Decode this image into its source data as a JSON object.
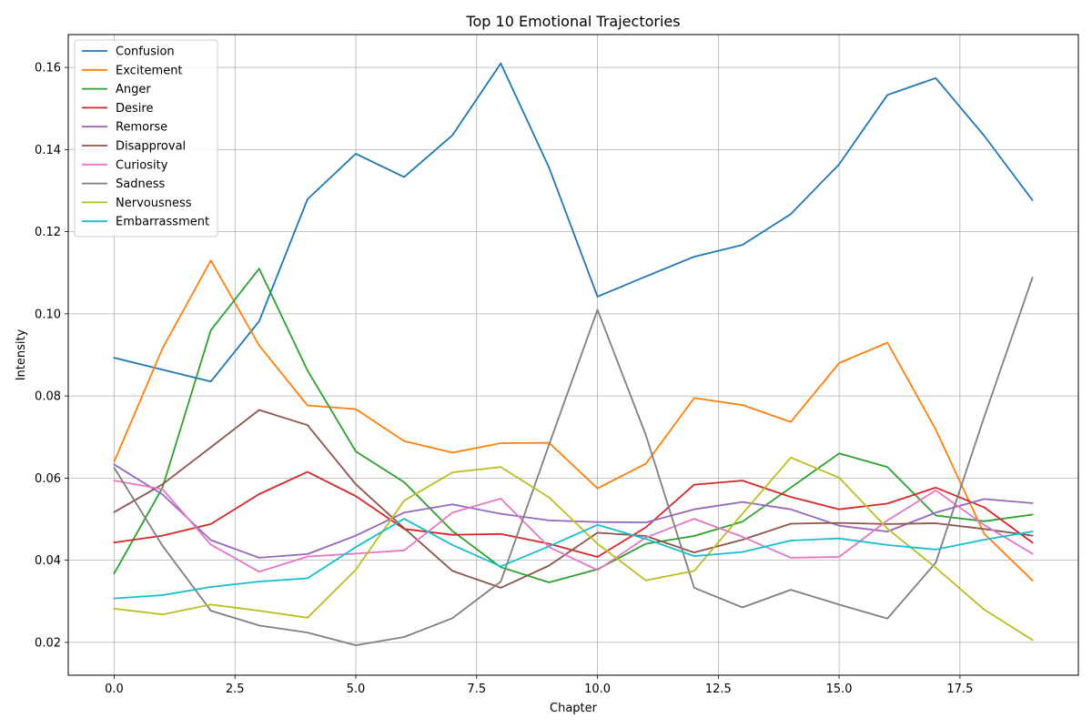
{
  "chart_data": {
    "type": "line",
    "title": "Top 10 Emotional Trajectories",
    "xlabel": "Chapter",
    "ylabel": "Intensity",
    "xlim": [
      -0.95,
      19.95
    ],
    "ylim": [
      0.012,
      0.168
    ],
    "x_ticks": [
      0.0,
      2.5,
      5.0,
      7.5,
      10.0,
      12.5,
      15.0,
      17.5
    ],
    "x_tick_labels": [
      "0.0",
      "2.5",
      "5.0",
      "7.5",
      "10.0",
      "12.5",
      "15.0",
      "17.5"
    ],
    "y_ticks": [
      0.02,
      0.04,
      0.06,
      0.08,
      0.1,
      0.12,
      0.14,
      0.16
    ],
    "y_tick_labels": [
      "0.02",
      "0.04",
      "0.06",
      "0.08",
      "0.10",
      "0.12",
      "0.14",
      "0.16"
    ],
    "grid": true,
    "legend_position": "top-left",
    "x": [
      0,
      1,
      2,
      3,
      4,
      5,
      6,
      7,
      8,
      9,
      10,
      11,
      12,
      13,
      14,
      15,
      16,
      17,
      18,
      19
    ],
    "series": [
      {
        "name": "Confusion",
        "color": "#1f77b4",
        "values": [
          0.0893,
          0.0864,
          0.0835,
          0.0982,
          0.1279,
          0.139,
          0.1333,
          0.1435,
          0.161,
          0.1356,
          0.1042,
          0.1091,
          0.1139,
          0.1168,
          0.1243,
          0.1364,
          0.1533,
          0.1574,
          0.1434,
          0.1277
        ]
      },
      {
        "name": "Excitement",
        "color": "#ff7f0e",
        "values": [
          0.064,
          0.0916,
          0.113,
          0.0923,
          0.0777,
          0.0768,
          0.069,
          0.0662,
          0.0685,
          0.0686,
          0.0575,
          0.0635,
          0.0795,
          0.0778,
          0.0737,
          0.088,
          0.093,
          0.0718,
          0.0465,
          0.0351
        ]
      },
      {
        "name": "Anger",
        "color": "#2ca02c",
        "values": [
          0.0368,
          0.0577,
          0.096,
          0.111,
          0.0862,
          0.0665,
          0.059,
          0.0471,
          0.0383,
          0.0346,
          0.0378,
          0.044,
          0.0459,
          0.0494,
          0.0577,
          0.066,
          0.0627,
          0.0509,
          0.0495,
          0.0511
        ]
      },
      {
        "name": "Desire",
        "color": "#d62728",
        "values": [
          0.0443,
          0.046,
          0.0488,
          0.0561,
          0.0615,
          0.0556,
          0.0476,
          0.0462,
          0.0464,
          0.044,
          0.0408,
          0.048,
          0.0584,
          0.0594,
          0.0554,
          0.0524,
          0.0538,
          0.0577,
          0.0529,
          0.0443
        ]
      },
      {
        "name": "Remorse",
        "color": "#9467bd",
        "values": [
          0.0633,
          0.056,
          0.0449,
          0.0406,
          0.0415,
          0.046,
          0.0516,
          0.0536,
          0.0513,
          0.0497,
          0.0493,
          0.0492,
          0.0524,
          0.0542,
          0.0524,
          0.0484,
          0.047,
          0.0516,
          0.0549,
          0.0539
        ]
      },
      {
        "name": "Disapproval",
        "color": "#8c564b",
        "values": [
          0.0517,
          0.0585,
          0.0675,
          0.0766,
          0.0729,
          0.0585,
          0.0478,
          0.0374,
          0.0333,
          0.0387,
          0.0467,
          0.0459,
          0.0419,
          0.045,
          0.0489,
          0.0491,
          0.0488,
          0.049,
          0.0476,
          0.046
        ]
      },
      {
        "name": "Curiosity",
        "color": "#e377c2",
        "values": [
          0.0594,
          0.0573,
          0.0438,
          0.0372,
          0.0409,
          0.0416,
          0.0424,
          0.0516,
          0.055,
          0.0432,
          0.0376,
          0.0455,
          0.0501,
          0.0457,
          0.0406,
          0.0408,
          0.0497,
          0.057,
          0.0486,
          0.0416
        ]
      },
      {
        "name": "Sadness",
        "color": "#7f7f7f",
        "values": [
          0.0625,
          0.0435,
          0.0277,
          0.0241,
          0.0224,
          0.0193,
          0.0213,
          0.0259,
          0.0348,
          0.0682,
          0.101,
          0.0705,
          0.0333,
          0.0285,
          0.0328,
          0.0292,
          0.0258,
          0.0394,
          0.0748,
          0.1088
        ]
      },
      {
        "name": "Nervousness",
        "color": "#bcbd22",
        "values": [
          0.0282,
          0.0268,
          0.0292,
          0.0277,
          0.026,
          0.0377,
          0.0545,
          0.0614,
          0.0627,
          0.0553,
          0.044,
          0.0351,
          0.0374,
          0.0513,
          0.065,
          0.0601,
          0.0477,
          0.0382,
          0.028,
          0.0206
        ]
      },
      {
        "name": "Embarrassment",
        "color": "#17becf",
        "values": [
          0.0307,
          0.0315,
          0.0335,
          0.0348,
          0.0356,
          0.0432,
          0.0501,
          0.0437,
          0.0385,
          0.0434,
          0.0486,
          0.0452,
          0.041,
          0.042,
          0.0448,
          0.0453,
          0.0437,
          0.0426,
          0.045,
          0.047
        ]
      }
    ]
  }
}
